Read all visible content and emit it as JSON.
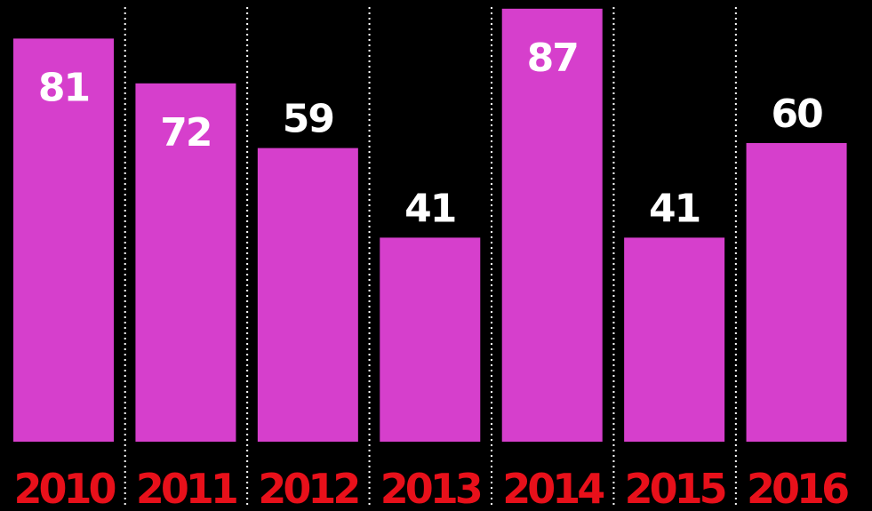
{
  "chart_data": {
    "type": "bar",
    "title": "",
    "xlabel": "",
    "ylabel": "",
    "categories": [
      "2010",
      "2011",
      "2012",
      "2013",
      "2014",
      "2015",
      "2016"
    ],
    "values": [
      81,
      72,
      59,
      41,
      87,
      41,
      60
    ],
    "value_labels": [
      "81",
      "72",
      "59",
      "41",
      "87",
      "41",
      "60"
    ],
    "grid": "dotted vertical separators between categories",
    "colors": {
      "background": "#000000",
      "bar": "#d63fcc",
      "value_label": "#ffffff",
      "tick_label": "#e8101a",
      "separator": "#ffffff"
    }
  }
}
